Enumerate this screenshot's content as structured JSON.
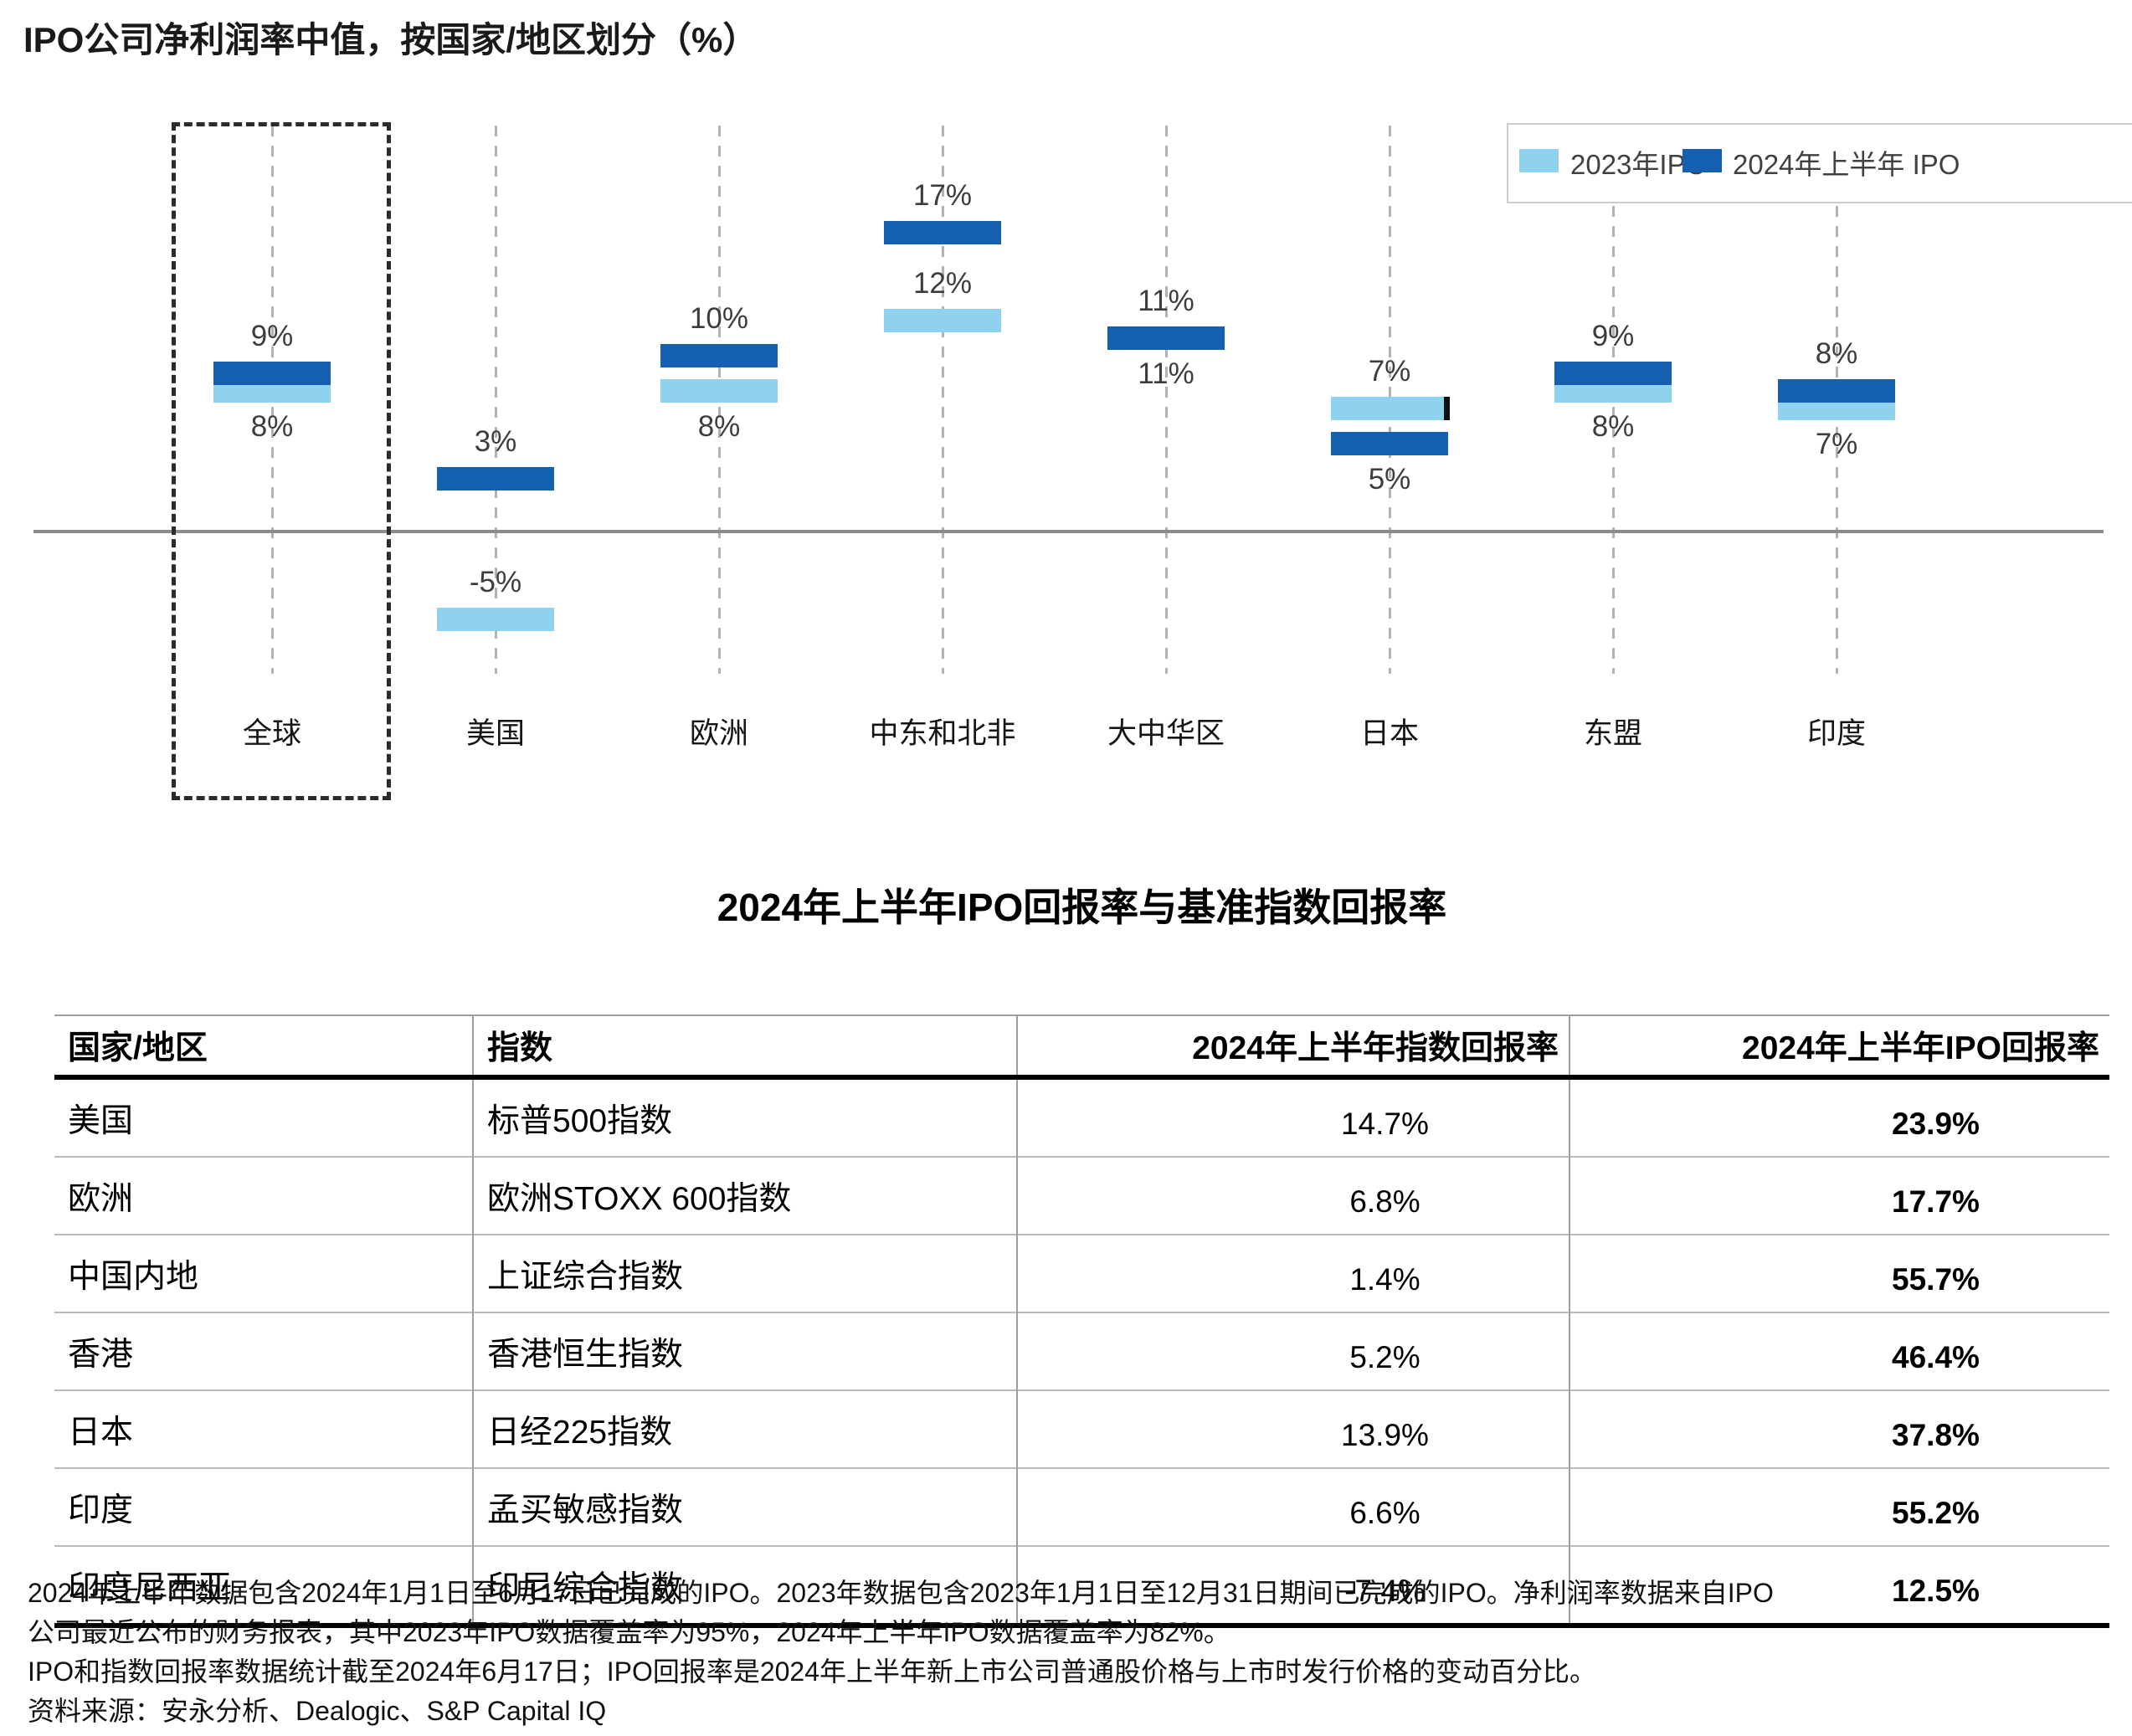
{
  "chart_data": [
    {
      "type": "bar",
      "title": "IPO公司净利润率中值，按国家/地区划分（%）",
      "unit": "%",
      "categories": [
        "全球",
        "美国",
        "欧洲",
        "中东和北非",
        "大中华区",
        "日本",
        "东盟",
        "印度"
      ],
      "series": [
        {
          "name": "2023年IPO",
          "color": "#8FD2F0",
          "values": [
            8,
            -5,
            8,
            12,
            11,
            7,
            8,
            7
          ],
          "label_pos": [
            "below",
            "above",
            "below",
            "above",
            "below",
            "above",
            "below",
            "below"
          ]
        },
        {
          "name": "2024年上半年 IPO",
          "color": "#1660B2",
          "values": [
            9,
            3,
            10,
            17,
            11,
            5,
            9,
            8
          ],
          "label_pos": [
            "above",
            "above",
            "above",
            "above",
            "above",
            "below",
            "above",
            "above"
          ]
        }
      ],
      "ylim": [
        -7,
        20
      ],
      "zero_line": true,
      "gridlines": "vertical-dashed",
      "legend_position": "top-right",
      "highlighted_category": "全球",
      "black_tick_marker": {
        "category": "日本",
        "series": "2023年IPO",
        "position": "right-edge"
      }
    },
    {
      "type": "table",
      "title": "2024年上半年IPO回报率与基准指数回报率",
      "columns": [
        "国家/地区",
        "指数",
        "2024年上半年指数回报率",
        "2024年上半年IPO回报率"
      ],
      "rows": [
        [
          "美国",
          "标普500指数",
          "14.7%",
          "23.9%"
        ],
        [
          "欧洲",
          "欧洲STOXX 600指数",
          "6.8%",
          "17.7%"
        ],
        [
          "中国内地",
          "上证综合指数",
          "1.4%",
          "55.7%"
        ],
        [
          "香港",
          "香港恒生指数",
          "5.2%",
          "46.4%"
        ],
        [
          "日本",
          "日经225指数",
          "13.9%",
          "37.8%"
        ],
        [
          "印度",
          "孟买敏感指数",
          "6.6%",
          "55.2%"
        ],
        [
          "印度尼西亚",
          "印尼综合指数",
          "-7.4%",
          "12.5%"
        ]
      ]
    }
  ],
  "footnotes": [
    "2024年上半年数据包含2024年1月1日至6月17日已完成的IPO。2023年数据包含2023年1月1日至12月31日期间已完成的IPO。净利润率数据来自IPO",
    "公司最近公布的财务报表，其中2023年IPO数据覆盖率为95%，2024年上半年IPO数据覆盖率为82%。",
    "IPO和指数回报率数据统计截至2024年6月17日；IPO回报率是2024年上半年新上市公司普通股价格与上市时发行价格的变动百分比。",
    "资料来源：安永分析、Dealogic、S&P Capital IQ"
  ]
}
